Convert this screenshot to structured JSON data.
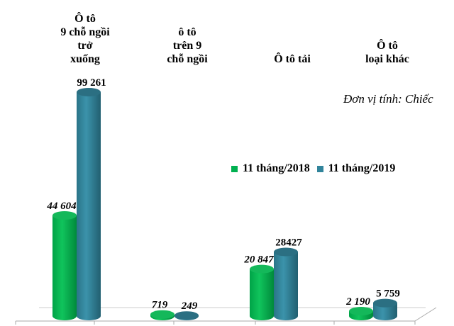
{
  "chart_data": {
    "type": "bar",
    "title": "",
    "unit_label": "Đơn vị tính: Chiếc",
    "categories": [
      "Ô tô\n9 chỗ ngồi\ntrở\nxuống",
      "ô tô\ntrên 9\nchỗ ngồi",
      "Ô tô tải",
      "Ô tô\nloại khác"
    ],
    "series": [
      {
        "name": "11 tháng/2018",
        "color": "#00b050",
        "values": [
          44604,
          719,
          20847,
          2190
        ],
        "labels": [
          "44 604",
          "719",
          "20 847",
          "2 190"
        ]
      },
      {
        "name": "11 tháng/2019",
        "color": "#31849b",
        "values": [
          99261,
          249,
          28427,
          5759
        ],
        "labels": [
          "99 261",
          "249",
          "28427",
          "5 759"
        ]
      }
    ],
    "legend_position": "center-right",
    "grid": false,
    "ylim": [
      0,
      99261
    ]
  }
}
